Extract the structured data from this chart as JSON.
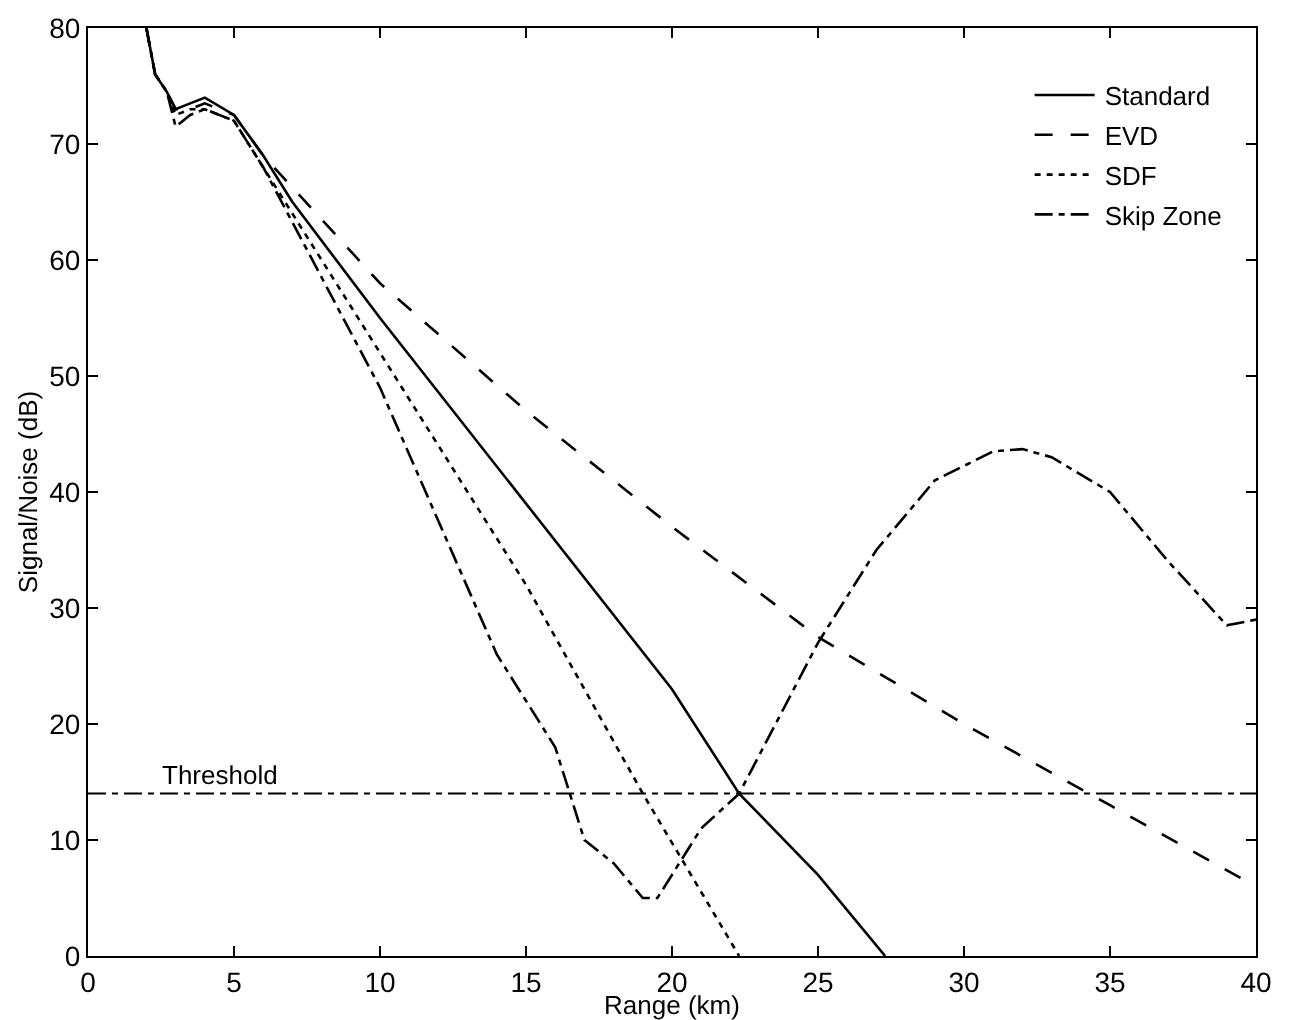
{
  "chart_data": {
    "type": "line",
    "xlabel": "Range (km)",
    "ylabel": "Signal/Noise (dB)",
    "xlim": [
      0,
      40
    ],
    "ylim": [
      0,
      80
    ],
    "xticks": [
      0,
      5,
      10,
      15,
      20,
      25,
      30,
      35,
      40
    ],
    "yticks": [
      0,
      10,
      20,
      30,
      40,
      50,
      60,
      70,
      80
    ],
    "grid": false,
    "legend": "top right",
    "marker": "none",
    "series": [
      {
        "name": "Standard",
        "color": "#000000",
        "line_style": "solid",
        "x": [
          2,
          2.3,
          2.7,
          3,
          3.5,
          4,
          5,
          6,
          7,
          10,
          15,
          20,
          22.3,
          25,
          27.3
        ],
        "values": [
          80,
          76,
          74.5,
          73,
          73.5,
          74,
          72.5,
          69,
          65,
          55,
          39,
          23,
          14,
          7,
          0
        ]
      },
      {
        "name": "EVD",
        "color": "#000000",
        "line_style": "dashed",
        "x": [
          2,
          2.3,
          2.7,
          3,
          3.5,
          4,
          5,
          6,
          10,
          15,
          20,
          25,
          30,
          35,
          40
        ],
        "values": [
          80,
          76,
          74.5,
          73,
          73,
          73.5,
          72.5,
          69,
          58,
          47,
          37,
          27.5,
          20,
          13,
          6
        ]
      },
      {
        "name": "SDF",
        "color": "#000000",
        "line_style": "dotted",
        "x": [
          2,
          2.3,
          2.7,
          3,
          3.5,
          4,
          5,
          6,
          10,
          15,
          19,
          22.3
        ],
        "values": [
          80,
          76,
          74.5,
          72.5,
          73,
          73,
          72,
          68,
          52,
          32,
          14,
          0
        ]
      },
      {
        "name": "Skip Zone",
        "color": "#000000",
        "line_style": "dashdot",
        "x": [
          2,
          2.3,
          2.7,
          3,
          3.5,
          4,
          5,
          6,
          10,
          14,
          16,
          17,
          18,
          19,
          19.5,
          21,
          22.3,
          25,
          27,
          29,
          31,
          32,
          33,
          35,
          37,
          39,
          40
        ],
        "values": [
          80,
          76,
          74.5,
          71.5,
          72.5,
          73,
          72,
          68,
          49,
          26,
          18,
          10,
          8,
          5,
          5,
          11,
          14,
          27,
          35,
          41,
          43.5,
          43.7,
          43,
          40,
          34,
          28.5,
          29
        ]
      }
    ],
    "ref_lines": [
      {
        "axis": "y",
        "value": 14,
        "label": "Threshold",
        "color": "#000000",
        "line_style": "dashdot"
      }
    ]
  }
}
